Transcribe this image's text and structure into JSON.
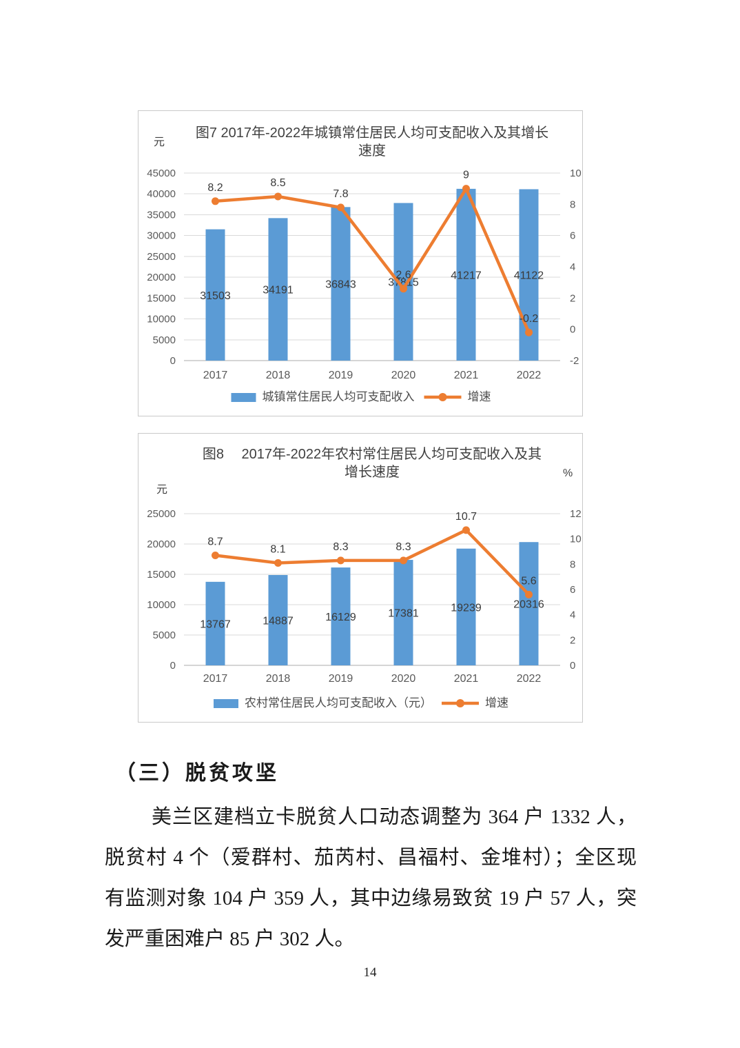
{
  "document": {
    "section_heading": "（三）脱贫攻坚",
    "paragraph_lines": [
      "美兰区建档立卡脱贫人口动态调整为 364 户 1332 人，",
      "脱贫村 4 个（爱群村、茄芮村、昌福村、金堆村）；全区现",
      "有监测对象 104 户 359 人，其中边缘易致贫 19 户 57 人，突",
      "发严重困难户 85 户 302 人。"
    ],
    "page_number": "14"
  },
  "colors": {
    "bar": "#5B9BD5",
    "line": "#ED7D31",
    "grid": "#D9D9D9",
    "baseline": "#ABABAB",
    "axis_text": "#595959",
    "title_text": "#404040",
    "border": "#C9C9C9"
  },
  "chart_data": [
    {
      "type": "bar",
      "title": "图7 2017年-2022年城镇常住居民人均可支配收入及其增长速度",
      "title_lines": [
        "图7 2017年-2022年城镇常住居民人均可支配收入及其增长",
        "速度"
      ],
      "left_unit": "元",
      "right_unit": "",
      "categories": [
        "2017",
        "2018",
        "2019",
        "2020",
        "2021",
        "2022"
      ],
      "series": [
        {
          "name": "城镇常住居民人均可支配收入",
          "type": "bar",
          "axis": "left",
          "values": [
            31503,
            34191,
            36843,
            37815,
            41217,
            41122
          ]
        },
        {
          "name": "增速",
          "type": "line",
          "axis": "right",
          "values": [
            8.2,
            8.5,
            7.8,
            2.6,
            9,
            -0.2
          ]
        }
      ],
      "left_axis": {
        "min": 0,
        "max": 45000,
        "step": 5000,
        "ticks": [
          "0",
          "5000",
          "10000",
          "15000",
          "20000",
          "25000",
          "30000",
          "35000",
          "40000",
          "45000"
        ]
      },
      "right_axis": {
        "min": -2,
        "max": 10,
        "step": 2,
        "ticks": [
          "-2",
          "0",
          "2",
          "4",
          "6",
          "8",
          "10"
        ]
      },
      "grid": true,
      "legend_position": "bottom"
    },
    {
      "type": "bar",
      "title": "图8　2017年-2022年农村常住居民人均可支配收入及其增长速度",
      "title_lines": [
        "图8　 2017年-2022年农村常住居民人均可支配收入及其",
        "增长速度"
      ],
      "left_unit": "元",
      "right_unit": "%",
      "categories": [
        "2017",
        "2018",
        "2019",
        "2020",
        "2021",
        "2022"
      ],
      "series": [
        {
          "name": "农村常住居民人均可支配收入（元）",
          "type": "bar",
          "axis": "left",
          "values": [
            13767,
            14887,
            16129,
            17381,
            19239,
            20316
          ]
        },
        {
          "name": "增速",
          "type": "line",
          "axis": "right",
          "values": [
            8.7,
            8.1,
            8.3,
            8.3,
            10.7,
            5.6
          ]
        }
      ],
      "left_axis": {
        "min": 0,
        "max": 25000,
        "step": 5000,
        "ticks": [
          "0",
          "5000",
          "10000",
          "15000",
          "20000",
          "25000"
        ]
      },
      "right_axis": {
        "min": 0,
        "max": 12,
        "step": 2,
        "ticks": [
          "0",
          "2",
          "4",
          "6",
          "8",
          "10",
          "12"
        ]
      },
      "grid": true,
      "legend_position": "bottom"
    }
  ]
}
